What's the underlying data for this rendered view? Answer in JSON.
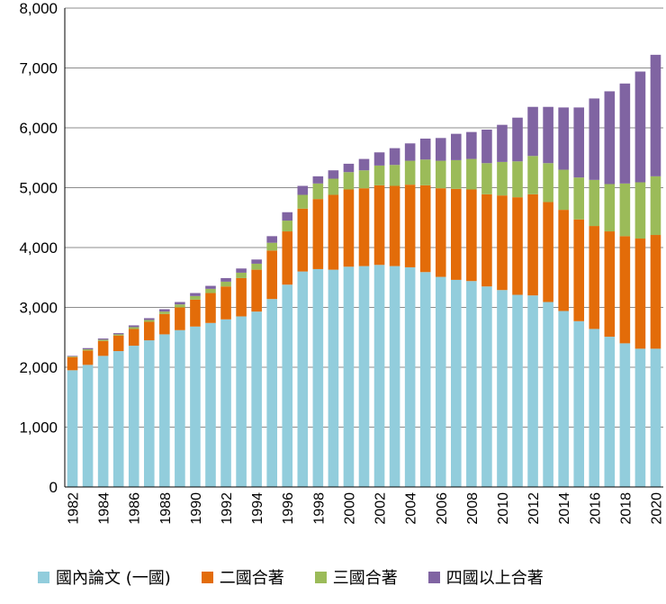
{
  "chart_data": {
    "type": "bar",
    "stacked": true,
    "title": "",
    "xlabel": "",
    "ylabel": "",
    "ylim": [
      0,
      8000
    ],
    "yticks": [
      "0",
      "1,000",
      "2,000",
      "3,000",
      "4,000",
      "5,000",
      "6,000",
      "7,000",
      "8,000"
    ],
    "grid": true,
    "legend_position": "bottom",
    "categories": [
      1982,
      1983,
      1984,
      1985,
      1986,
      1987,
      1988,
      1989,
      1990,
      1991,
      1992,
      1993,
      1994,
      1995,
      1996,
      1997,
      1998,
      1999,
      2000,
      2001,
      2002,
      2003,
      2004,
      2005,
      2006,
      2007,
      2008,
      2009,
      2010,
      2011,
      2012,
      2013,
      2014,
      2015,
      2016,
      2017,
      2018,
      2019,
      2020
    ],
    "x_tick_labels": [
      "1982",
      "1984",
      "1986",
      "1988",
      "1990",
      "1992",
      "1994",
      "1996",
      "1998",
      "2000",
      "2002",
      "2004",
      "2006",
      "2008",
      "2010",
      "2012",
      "2014",
      "2016",
      "2018",
      "2020"
    ],
    "series": [
      {
        "name": "國內論文 (一國)",
        "color": "#92cddc",
        "values": [
          1950,
          2040,
          2190,
          2270,
          2360,
          2450,
          2550,
          2620,
          2680,
          2740,
          2800,
          2850,
          2930,
          3140,
          3380,
          3600,
          3640,
          3630,
          3680,
          3690,
          3710,
          3690,
          3670,
          3590,
          3510,
          3460,
          3440,
          3350,
          3290,
          3210,
          3200,
          3090,
          2940,
          2770,
          2640,
          2510,
          2400,
          2310,
          2310
        ]
      },
      {
        "name": "二國合著",
        "color": "#e36c09",
        "values": [
          220,
          240,
          250,
          260,
          280,
          310,
          340,
          380,
          450,
          500,
          550,
          640,
          700,
          810,
          890,
          1050,
          1170,
          1250,
          1290,
          1300,
          1330,
          1340,
          1380,
          1450,
          1480,
          1520,
          1530,
          1540,
          1580,
          1630,
          1690,
          1670,
          1690,
          1700,
          1720,
          1760,
          1790,
          1840,
          1900
        ]
      },
      {
        "name": "三國合著",
        "color": "#9bbb59",
        "values": [
          10,
          20,
          20,
          20,
          30,
          30,
          40,
          50,
          60,
          70,
          80,
          90,
          100,
          130,
          180,
          230,
          260,
          270,
          290,
          300,
          330,
          350,
          400,
          430,
          460,
          480,
          510,
          520,
          560,
          600,
          640,
          650,
          670,
          700,
          770,
          790,
          880,
          940,
          980
        ]
      },
      {
        "name": "四國以上合著",
        "color": "#8064a2",
        "values": [
          10,
          20,
          20,
          20,
          30,
          30,
          40,
          40,
          50,
          50,
          60,
          70,
          70,
          110,
          140,
          150,
          120,
          140,
          140,
          190,
          220,
          280,
          290,
          350,
          380,
          440,
          450,
          560,
          620,
          730,
          820,
          940,
          1040,
          1170,
          1360,
          1550,
          1670,
          1850,
          2030
        ]
      }
    ]
  }
}
